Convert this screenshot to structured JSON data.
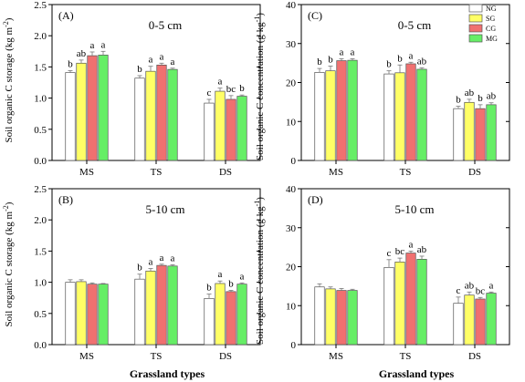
{
  "figure": {
    "xlabel_bottom": "Grassland types",
    "legend": {
      "placement": "top-right",
      "entries": [
        {
          "name": "NG",
          "color": "#ffffff"
        },
        {
          "name": "SG",
          "color": "#ffff66"
        },
        {
          "name": "CG",
          "color": "#f07070"
        },
        {
          "name": "MG",
          "color": "#66ee66"
        }
      ]
    }
  },
  "chart_data": [
    {
      "type": "bar",
      "panel": "(A)",
      "depth": "0-5 cm",
      "ylabel": "Soil organic C storage (kg m",
      "ylabel_sup": "-2",
      "ylabel_end": ")",
      "xlabel": "",
      "ylim": [
        0,
        2.5
      ],
      "yticks": [
        "0.0",
        "0.5",
        "1.0",
        "1.5",
        "2.0",
        "2.5"
      ],
      "categories": [
        "MS",
        "TS",
        "DS"
      ],
      "series": [
        {
          "name": "NG",
          "values": [
            1.41,
            1.32,
            0.92
          ],
          "errors": [
            0.03,
            0.04,
            0.06
          ],
          "sig": [
            "b",
            "b",
            "c"
          ]
        },
        {
          "name": "SG",
          "values": [
            1.56,
            1.43,
            1.11
          ],
          "errors": [
            0.05,
            0.08,
            0.05
          ],
          "sig": [
            "ab",
            "a",
            "a"
          ]
        },
        {
          "name": "CG",
          "values": [
            1.68,
            1.53,
            0.98
          ],
          "errors": [
            0.06,
            0.03,
            0.06
          ],
          "sig": [
            "a",
            "a",
            "bc"
          ]
        },
        {
          "name": "MG",
          "values": [
            1.69,
            1.46,
            1.03
          ],
          "errors": [
            0.06,
            0.02,
            0.02
          ],
          "sig": [
            "a",
            "a",
            "b"
          ]
        }
      ]
    },
    {
      "type": "bar",
      "panel": "(C)",
      "depth": "0-5 cm",
      "ylabel": "Soil organic C concentration (g kg",
      "ylabel_sup": "-1",
      "ylabel_end": ")",
      "xlabel": "",
      "ylim": [
        0,
        40
      ],
      "yticks": [
        "0",
        "10",
        "20",
        "30",
        "40"
      ],
      "categories": [
        "MS",
        "TS",
        "DS"
      ],
      "series": [
        {
          "name": "NG",
          "values": [
            22.6,
            22.2,
            13.3
          ],
          "errors": [
            1.0,
            0.8,
            0.6
          ],
          "sig": [
            "b",
            "b",
            "b"
          ]
        },
        {
          "name": "SG",
          "values": [
            23.0,
            22.5,
            14.9
          ],
          "errors": [
            1.2,
            2.0,
            0.8
          ],
          "sig": [
            "b",
            "b",
            "ab"
          ]
        },
        {
          "name": "CG",
          "values": [
            25.6,
            24.8,
            13.3
          ],
          "errors": [
            0.5,
            0.4,
            1.0
          ],
          "sig": [
            "a",
            "a",
            "b"
          ]
        },
        {
          "name": "MG",
          "values": [
            25.7,
            23.4,
            14.3
          ],
          "errors": [
            0.4,
            0.4,
            0.5
          ],
          "sig": [
            "a",
            "ab",
            "ab"
          ]
        }
      ]
    },
    {
      "type": "bar",
      "panel": "(B)",
      "depth": "5-10 cm",
      "ylabel": "Soil organic C storage (kg m",
      "ylabel_sup": "-2",
      "ylabel_end": ")",
      "xlabel": "",
      "ylim": [
        0,
        2.5
      ],
      "yticks": [
        "0.0",
        "0.5",
        "1.0",
        "1.5",
        "2.0",
        "2.5"
      ],
      "categories": [
        "MS",
        "TS",
        "DS"
      ],
      "series": [
        {
          "name": "NG",
          "values": [
            1.0,
            1.05,
            0.74
          ],
          "errors": [
            0.04,
            0.08,
            0.07
          ],
          "sig": [
            "",
            "b",
            "b"
          ]
        },
        {
          "name": "SG",
          "values": [
            1.01,
            1.18,
            0.98
          ],
          "errors": [
            0.03,
            0.04,
            0.04
          ],
          "sig": [
            "",
            "a",
            "a"
          ]
        },
        {
          "name": "CG",
          "values": [
            0.97,
            1.27,
            0.85
          ],
          "errors": [
            0.02,
            0.02,
            0.02
          ],
          "sig": [
            "",
            "a",
            "b"
          ]
        },
        {
          "name": "MG",
          "values": [
            0.97,
            1.26,
            0.97
          ],
          "errors": [
            0.01,
            0.02,
            0.02
          ],
          "sig": [
            "",
            "a",
            "a"
          ]
        }
      ]
    },
    {
      "type": "bar",
      "panel": "(D)",
      "depth": "5-10 cm",
      "ylabel": "Soil organic C concentration (g kg",
      "ylabel_sup": "-1",
      "ylabel_end": ")",
      "xlabel": "",
      "ylim": [
        0,
        40
      ],
      "yticks": [
        "0",
        "10",
        "20",
        "30",
        "40"
      ],
      "categories": [
        "MS",
        "TS",
        "DS"
      ],
      "series": [
        {
          "name": "NG",
          "values": [
            14.8,
            19.8,
            10.6
          ],
          "errors": [
            0.8,
            2.0,
            1.6
          ],
          "sig": [
            "",
            "c",
            "c"
          ]
        },
        {
          "name": "SG",
          "values": [
            14.3,
            21.2,
            12.7
          ],
          "errors": [
            0.5,
            1.0,
            0.8
          ],
          "sig": [
            "",
            "bc",
            "ab"
          ]
        },
        {
          "name": "CG",
          "values": [
            13.9,
            23.5,
            11.7
          ],
          "errors": [
            0.5,
            0.5,
            0.4
          ],
          "sig": [
            "",
            "a",
            "bc"
          ]
        },
        {
          "name": "MG",
          "values": [
            13.9,
            21.9,
            13.2
          ],
          "errors": [
            0.3,
            0.8,
            0.3
          ],
          "sig": [
            "",
            "ab",
            "a"
          ]
        }
      ]
    }
  ]
}
